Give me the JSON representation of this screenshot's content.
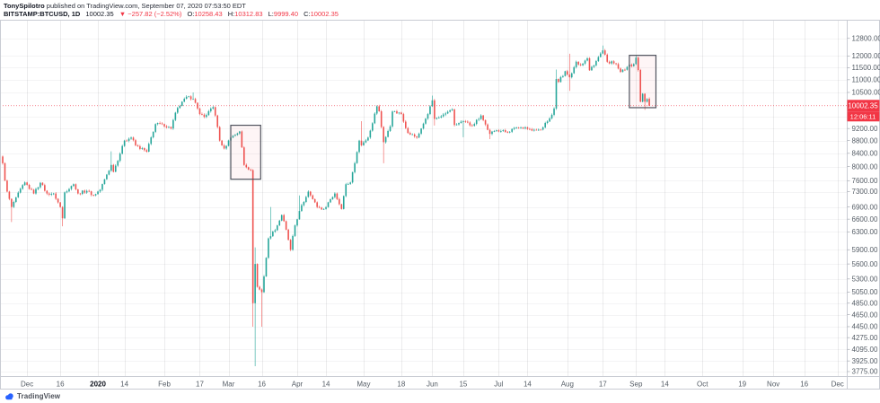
{
  "header": {
    "byline_author": "TonySpilotro",
    "byline_rest": " published on TradingView.com, September 07, 2020 07:53:50 EDT",
    "legend": {
      "symbol": "BITSTAMP:BTCUSD, 1D",
      "last": "10002.35",
      "dir": "▼",
      "change": "−257.82 (−2.52%)",
      "o_label": "O:",
      "o_val": "10258.43",
      "h_label": "H:",
      "h_val": "10312.83",
      "l_label": "L:",
      "l_val": "9999.40",
      "c_label": "C:",
      "c_val": "10002.35"
    }
  },
  "price_axis": {
    "badge_price": "10002.35",
    "badge_countdown": "12:06:11",
    "tick_labels": [
      "12800.00",
      "12000.00",
      "11500.00",
      "11000.00",
      "10500.00",
      "9600.00",
      "9200.00",
      "8800.00",
      "8400.00",
      "8000.00",
      "7600.00",
      "7300.00",
      "6900.00",
      "6600.00",
      "6300.00",
      "5900.00",
      "5600.00",
      "5300.00",
      "5050.00",
      "4850.00",
      "4650.00",
      "4450.00",
      "4275.00",
      "4095.00",
      "3925.00",
      "3775.00"
    ]
  },
  "time_axis": {
    "ticks": [
      {
        "d": 11,
        "label": "Dec"
      },
      {
        "d": 26,
        "label": "16"
      },
      {
        "d": 43,
        "label": "2020",
        "strong": true
      },
      {
        "d": 55,
        "label": "14"
      },
      {
        "d": 73,
        "label": "Feb"
      },
      {
        "d": 89,
        "label": "17"
      },
      {
        "d": 102,
        "label": "Mar"
      },
      {
        "d": 117,
        "label": "16"
      },
      {
        "d": 133,
        "label": "Apr"
      },
      {
        "d": 146,
        "label": "14"
      },
      {
        "d": 163,
        "label": "May"
      },
      {
        "d": 180,
        "label": "18"
      },
      {
        "d": 194,
        "label": "Jun"
      },
      {
        "d": 208,
        "label": "15"
      },
      {
        "d": 224,
        "label": "Jul"
      },
      {
        "d": 237,
        "label": "14"
      },
      {
        "d": 255,
        "label": "Aug"
      },
      {
        "d": 271,
        "label": "17"
      },
      {
        "d": 286,
        "label": "Sep"
      },
      {
        "d": 299,
        "label": "14"
      },
      {
        "d": 316,
        "label": "Oct"
      },
      {
        "d": 334,
        "label": "19"
      },
      {
        "d": 348,
        "label": "Nov"
      },
      {
        "d": 362,
        "label": "16"
      },
      {
        "d": 377,
        "label": "Dec"
      }
    ]
  },
  "footer": {
    "brand": "TradingView"
  },
  "colors": {
    "up": "#26a69a",
    "down": "#ef5350",
    "accent_red": "#f23645",
    "axis_text": "#555d66",
    "grid_h": "rgba(42,46,57,0.05)",
    "grid_v": "rgba(42,46,57,0.09)",
    "frame": "#c9ccd3",
    "box_stroke": "#50535e",
    "box_fill": "rgba(242,54,69,0.05)",
    "brand_blue": "#2962ff"
  },
  "chart_data": {
    "type": "candlestick",
    "symbol": "BITSTAMP:BTCUSD",
    "interval": "1D",
    "title": "BTC/USD daily, Bitstamp, log scale",
    "scale": "log",
    "start_date_day0": "2019-11-20",
    "end_visible_date": "2020-12-28",
    "last_candle_day": 292,
    "ohlc_current": {
      "open": 10258.43,
      "high": 10312.83,
      "low": 9999.4,
      "close": 10002.35
    },
    "y_axis_range_approx": [
      3700,
      13100
    ],
    "y_ticks": [
      12800,
      12000,
      11500,
      11000,
      10500,
      9600,
      9200,
      8800,
      8400,
      8000,
      7600,
      7300,
      6900,
      6600,
      6300,
      5900,
      5600,
      5300,
      5050,
      4850,
      4650,
      4450,
      4275,
      4095,
      3925,
      3775
    ],
    "waypoints_format": "[dayIndex, close, lowWickOrNull, highWickOrNull]",
    "waypoints": [
      [
        0,
        8100
      ],
      [
        1,
        7600
      ],
      [
        2,
        7300
      ],
      [
        4,
        6900,
        6530,
        null
      ],
      [
        6,
        7150
      ],
      [
        10,
        7550
      ],
      [
        14,
        7250
      ],
      [
        17,
        7540
      ],
      [
        20,
        7250
      ],
      [
        23,
        7250
      ],
      [
        26,
        6900
      ],
      [
        27,
        6620,
        6430,
        null
      ],
      [
        28,
        7280
      ],
      [
        32,
        7500
      ],
      [
        34,
        7250
      ],
      [
        38,
        7320
      ],
      [
        41,
        7200
      ],
      [
        44,
        7350
      ],
      [
        47,
        7770
      ],
      [
        49,
        8050,
        null,
        8460
      ],
      [
        50,
        7850
      ],
      [
        55,
        8800
      ],
      [
        58,
        8900
      ],
      [
        60,
        8650
      ],
      [
        65,
        8450
      ],
      [
        69,
        9350
      ],
      [
        72,
        9350
      ],
      [
        76,
        9200
      ],
      [
        78,
        9750
      ],
      [
        81,
        10150
      ],
      [
        84,
        10350
      ],
      [
        86,
        10250,
        null,
        10500
      ],
      [
        89,
        9700
      ],
      [
        91,
        9600
      ],
      [
        95,
        9950
      ],
      [
        96,
        9650
      ],
      [
        98,
        8800
      ],
      [
        100,
        8550
      ],
      [
        103,
        8900
      ],
      [
        107,
        9100
      ],
      [
        109,
        8050
      ],
      [
        112,
        7900
      ],
      [
        113,
        4850,
        4450,
        null
      ],
      [
        114,
        5600,
        3850,
        5950
      ],
      [
        115,
        5150
      ],
      [
        117,
        5050,
        4450,
        null
      ],
      [
        118,
        5350
      ],
      [
        120,
        6150
      ],
      [
        121,
        6200,
        null,
        6900
      ],
      [
        124,
        6450
      ],
      [
        126,
        6700
      ],
      [
        128,
        6350
      ],
      [
        130,
        5900
      ],
      [
        132,
        6450
      ],
      [
        134,
        6800,
        null,
        7200
      ],
      [
        138,
        7300
      ],
      [
        139,
        7200
      ],
      [
        142,
        6900
      ],
      [
        145,
        6850
      ],
      [
        148,
        7100
      ],
      [
        150,
        7250
      ],
      [
        153,
        6850
      ],
      [
        155,
        7500
      ],
      [
        157,
        7550
      ],
      [
        161,
        8800
      ],
      [
        162,
        8650,
        null,
        9450
      ],
      [
        165,
        8900
      ],
      [
        169,
        9980
      ],
      [
        170,
        9800
      ],
      [
        172,
        8750,
        8100,
        null
      ],
      [
        175,
        9270
      ],
      [
        176,
        9790
      ],
      [
        180,
        9700
      ],
      [
        183,
        9050
      ],
      [
        187,
        8900
      ],
      [
        189,
        9200
      ],
      [
        192,
        9700
      ],
      [
        194,
        10200,
        null,
        10380
      ],
      [
        195,
        9530,
        9300,
        null
      ],
      [
        198,
        9620
      ],
      [
        203,
        9870
      ],
      [
        204,
        9320
      ],
      [
        208,
        9450,
        8910,
        null
      ],
      [
        212,
        9290
      ],
      [
        216,
        9650
      ],
      [
        220,
        9020,
        8850,
        null
      ],
      [
        223,
        9140
      ],
      [
        228,
        9080
      ],
      [
        232,
        9235
      ],
      [
        236,
        9240
      ],
      [
        239,
        9130
      ],
      [
        243,
        9160
      ],
      [
        245,
        9390
      ],
      [
        247,
        9550
      ],
      [
        249,
        9900
      ],
      [
        250,
        11030,
        null,
        11420
      ],
      [
        251,
        10910
      ],
      [
        254,
        11350
      ],
      [
        256,
        11100,
        10560,
        12100
      ],
      [
        259,
        11750
      ],
      [
        261,
        11600
      ],
      [
        264,
        11900
      ],
      [
        265,
        11390
      ],
      [
        268,
        11780
      ],
      [
        271,
        12250,
        null,
        12470
      ],
      [
        273,
        11750
      ],
      [
        277,
        11650
      ],
      [
        279,
        11320
      ],
      [
        282,
        11530
      ],
      [
        285,
        11650
      ],
      [
        286,
        11930,
        null,
        12050
      ],
      [
        287,
        11400
      ],
      [
        288,
        10150
      ],
      [
        289,
        10450
      ],
      [
        290,
        10150,
        9850,
        null
      ],
      [
        291,
        10250
      ],
      [
        292,
        10002.35,
        9999.4,
        10312.83
      ]
    ],
    "price_line": 10002.35,
    "annotation_boxes": [
      {
        "d1": 103,
        "d2": 116.5,
        "p_top": 9310,
        "p_bottom": 7640
      },
      {
        "d1": 283,
        "d2": 295,
        "p_top": 12030,
        "p_bottom": 9930
      }
    ]
  }
}
